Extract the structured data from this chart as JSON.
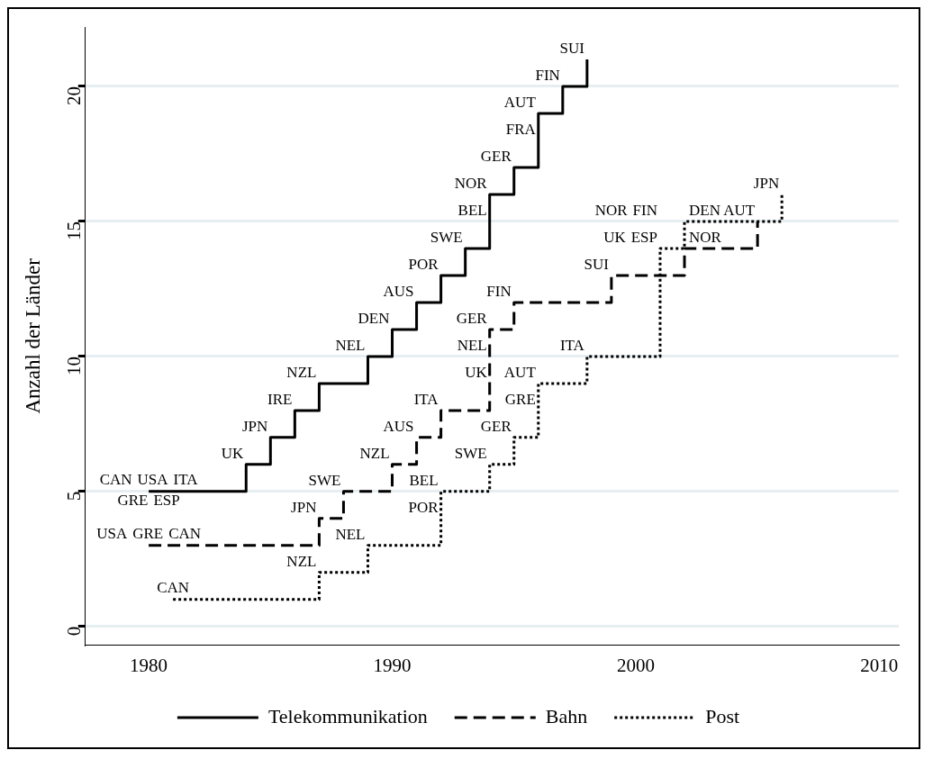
{
  "chart_data": {
    "type": "step",
    "ylabel": "Anzahl der Länder",
    "xlim": [
      1977.4,
      2010.8
    ],
    "xticks": [
      1980,
      1990,
      2000,
      2010
    ],
    "ylim": [
      -0.7,
      22.2
    ],
    "yticks": [
      0,
      5,
      10,
      15,
      20
    ],
    "grid": "y",
    "legend": "bottom",
    "marker": "none",
    "series": [
      {
        "name": "Telekommunikation",
        "color": "#000000",
        "line_style": "solid",
        "x": [
          1980,
          1984,
          1985,
          1986,
          1987,
          1989,
          1990,
          1991,
          1992,
          1993,
          1994,
          1995,
          1996,
          1997,
          1998
        ],
        "values": [
          5,
          6,
          7,
          8,
          9,
          10,
          11,
          12,
          13,
          14,
          16,
          17,
          19,
          20,
          21
        ]
      },
      {
        "name": "Bahn",
        "color": "#000000",
        "line_style": "dashed",
        "x": [
          1980,
          1987,
          1988,
          1990,
          1991,
          1992,
          1994,
          1995,
          1999,
          2002,
          2005
        ],
        "values": [
          3,
          4,
          5,
          6,
          7,
          8,
          11,
          12,
          13,
          14,
          15
        ]
      },
      {
        "name": "Post",
        "color": "#000000",
        "line_style": "dotted",
        "x": [
          1981,
          1987,
          1989,
          1992,
          1994,
          1995,
          1996,
          1998,
          2001,
          2002,
          2006
        ],
        "values": [
          1,
          2,
          3,
          5,
          6,
          7,
          9,
          10,
          14,
          15,
          16
        ]
      }
    ],
    "annotations": [
      {
        "text": "CAN",
        "x": 1980,
        "y": 5
      },
      {
        "text": "USA",
        "x": 1980,
        "y": 5
      },
      {
        "text": "ITA",
        "x": 1980,
        "y": 5
      },
      {
        "text": "GRE",
        "x": 1980,
        "y": 5
      },
      {
        "text": "ESP",
        "x": 1980,
        "y": 5
      },
      {
        "text": "UK",
        "x": 1984,
        "y": 6
      },
      {
        "text": "JPN",
        "x": 1985,
        "y": 7
      },
      {
        "text": "IRE",
        "x": 1986,
        "y": 8
      },
      {
        "text": "NZL",
        "x": 1987,
        "y": 9
      },
      {
        "text": "NEL",
        "x": 1989,
        "y": 10
      },
      {
        "text": "DEN",
        "x": 1990,
        "y": 11
      },
      {
        "text": "AUS",
        "x": 1991,
        "y": 12
      },
      {
        "text": "POR",
        "x": 1992,
        "y": 13
      },
      {
        "text": "SWE",
        "x": 1993,
        "y": 14
      },
      {
        "text": "NOR",
        "x": 1994,
        "y": 16
      },
      {
        "text": "BEL",
        "x": 1994,
        "y": 16
      },
      {
        "text": "GER",
        "x": 1995,
        "y": 17
      },
      {
        "text": "AUT",
        "x": 1996,
        "y": 19
      },
      {
        "text": "FRA",
        "x": 1996,
        "y": 19
      },
      {
        "text": "FIN",
        "x": 1997,
        "y": 20
      },
      {
        "text": "SUI",
        "x": 1998,
        "y": 21
      },
      {
        "text": "USA",
        "x": 1980,
        "y": 3
      },
      {
        "text": "GRE",
        "x": 1980,
        "y": 3
      },
      {
        "text": "CAN",
        "x": 1980,
        "y": 3
      },
      {
        "text": "JPN",
        "x": 1987,
        "y": 4
      },
      {
        "text": "SWE",
        "x": 1988,
        "y": 5
      },
      {
        "text": "NZL",
        "x": 1990,
        "y": 6
      },
      {
        "text": "AUS",
        "x": 1991,
        "y": 7
      },
      {
        "text": "ITA",
        "x": 1992,
        "y": 8
      },
      {
        "text": "GER",
        "x": 1994,
        "y": 11
      },
      {
        "text": "NEL",
        "x": 1994,
        "y": 11
      },
      {
        "text": "UK",
        "x": 1994,
        "y": 11
      },
      {
        "text": "FIN",
        "x": 1995,
        "y": 12
      },
      {
        "text": "SUI",
        "x": 1999,
        "y": 13
      },
      {
        "text": "NOR",
        "x": 2002,
        "y": 14
      },
      {
        "text": "AUT",
        "x": 2005,
        "y": 15
      },
      {
        "text": "CAN",
        "x": 1981,
        "y": 1
      },
      {
        "text": "NZL",
        "x": 1987,
        "y": 2
      },
      {
        "text": "NEL",
        "x": 1989,
        "y": 3
      },
      {
        "text": "BEL",
        "x": 1992,
        "y": 5
      },
      {
        "text": "POR",
        "x": 1992,
        "y": 5
      },
      {
        "text": "SWE",
        "x": 1994,
        "y": 6
      },
      {
        "text": "GER",
        "x": 1995,
        "y": 7
      },
      {
        "text": "AUT",
        "x": 1996,
        "y": 9
      },
      {
        "text": "GRE",
        "x": 1996,
        "y": 9
      },
      {
        "text": "ITA",
        "x": 1998,
        "y": 10
      },
      {
        "text": "UK",
        "x": 2001,
        "y": 14
      },
      {
        "text": "ESP",
        "x": 2001,
        "y": 14
      },
      {
        "text": "NOR",
        "x": 2001,
        "y": 14
      },
      {
        "text": "FIN",
        "x": 2001,
        "y": 14
      },
      {
        "text": "DEN",
        "x": 2002,
        "y": 15
      },
      {
        "text": "JPN",
        "x": 2006,
        "y": 16
      }
    ]
  }
}
